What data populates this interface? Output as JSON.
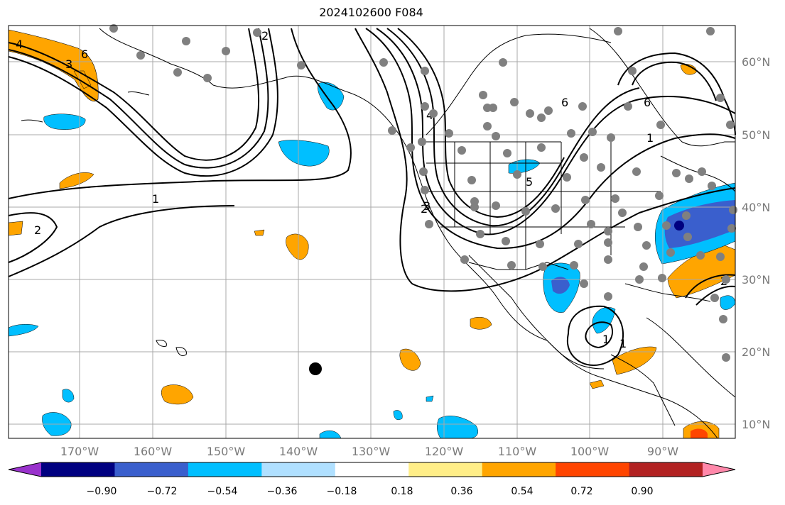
{
  "title": "2024102600 F084",
  "lat_labels": [
    "60°N",
    "50°N",
    "40°N",
    "30°N",
    "20°N",
    "10°N"
  ],
  "lon_labels": [
    "170°W",
    "160°W",
    "150°W",
    "140°W",
    "130°W",
    "120°W",
    "110°W",
    "100°W",
    "90°W"
  ],
  "contour_labels": [
    "4",
    "6",
    "3",
    "2",
    "1",
    "2",
    "2",
    "5",
    "6",
    "6",
    "1",
    "4",
    "3",
    "2",
    "1",
    "1"
  ],
  "colorbar": {
    "ticks": [
      "−0.90",
      "−0.72",
      "−0.54",
      "−0.36",
      "−0.18",
      "0.18",
      "0.36",
      "0.54",
      "0.72",
      "0.90"
    ],
    "colors": [
      "#9932cc",
      "#000080",
      "#3a5fcd",
      "#00bfff",
      "#b0e0ff",
      "#ffffff",
      "#ffee88",
      "#ffa500",
      "#ff4500",
      "#b22222",
      "#ff88aa"
    ]
  },
  "colors": {
    "grid": "#a9a9a9",
    "coast": "#000000",
    "station": "#808080",
    "contour": "#000000"
  }
}
